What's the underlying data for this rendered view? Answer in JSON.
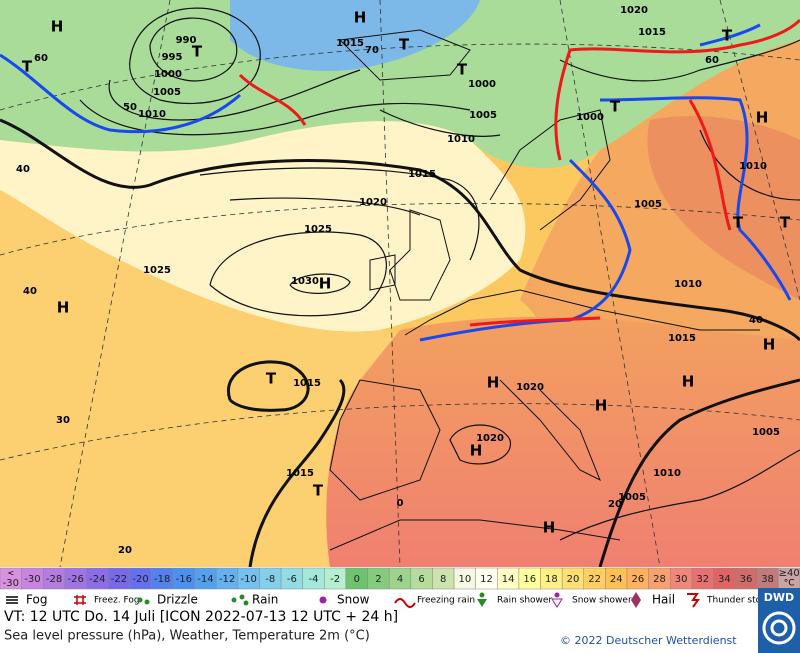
{
  "map": {
    "labels": [
      "H",
      "T",
      "990",
      "T",
      "995",
      "1000",
      "1005",
      "1010",
      "50",
      "H",
      "1015",
      "70",
      "T",
      "T",
      "1000",
      "1005",
      "1010",
      "1015",
      "1020",
      "1025",
      "1030",
      "H",
      "1025",
      "H",
      "40",
      "30",
      "T",
      "1015",
      "1015",
      "T",
      "20",
      "0",
      "H",
      "1020",
      "H",
      "H",
      "1020",
      "H",
      "1010",
      "1005",
      "H",
      "1015",
      "H",
      "1010",
      "1005",
      "1000",
      "T",
      "H",
      "1010",
      "T",
      "T",
      "1020",
      "1015",
      "60",
      "T",
      "20",
      "1005",
      "40",
      "60",
      "40"
    ]
  },
  "color_scale": [
    {
      "label": "-30",
      "prefix": "<",
      "color": "#d890e0"
    },
    {
      "label": "-30",
      "color": "#c884e0"
    },
    {
      "label": "-28",
      "color": "#b47ce0"
    },
    {
      "label": "-26",
      "color": "#a074e4"
    },
    {
      "label": "-24",
      "color": "#8c6ce8"
    },
    {
      "label": "-22",
      "color": "#7868ec"
    },
    {
      "label": "-20",
      "color": "#6470f0"
    },
    {
      "label": "-18",
      "color": "#5480f0"
    },
    {
      "label": "-16",
      "color": "#4c90f0"
    },
    {
      "label": "-14",
      "color": "#54a0f0"
    },
    {
      "label": "-12",
      "color": "#64b0f0"
    },
    {
      "label": "-10",
      "color": "#74c0f0"
    },
    {
      "label": "-8",
      "color": "#84d0ec"
    },
    {
      "label": "-6",
      "color": "#94dce4"
    },
    {
      "label": "-4",
      "color": "#a4e8dc"
    },
    {
      "label": "-2",
      "color": "#b4f0d0"
    },
    {
      "label": "0",
      "color": "#6cc46c"
    },
    {
      "label": "2",
      "color": "#84cc7c"
    },
    {
      "label": "4",
      "color": "#9cd48c"
    },
    {
      "label": "6",
      "color": "#b4dc9c"
    },
    {
      "label": "8",
      "color": "#cce4ac"
    },
    {
      "label": "10",
      "color": "#f4f8e4"
    },
    {
      "label": "12",
      "color": "#fffff0"
    },
    {
      "label": "14",
      "color": "#ffffc4"
    },
    {
      "label": "16",
      "color": "#ffff9c"
    },
    {
      "label": "18",
      "color": "#fff084"
    },
    {
      "label": "20",
      "color": "#ffe070"
    },
    {
      "label": "22",
      "color": "#ffd060"
    },
    {
      "label": "24",
      "color": "#ffc054"
    },
    {
      "label": "26",
      "color": "#ffb060"
    },
    {
      "label": "28",
      "color": "#f8a070"
    },
    {
      "label": "30",
      "color": "#f08878"
    },
    {
      "label": "32",
      "color": "#e87070"
    },
    {
      "label": "34",
      "color": "#e06464"
    },
    {
      "label": "36",
      "color": "#d06c6c"
    },
    {
      "label": "38",
      "color": "#c07c7c"
    },
    {
      "label": "≥40",
      "unit": "°C",
      "color": "#c8a4a4"
    }
  ],
  "legend": {
    "items": [
      "Fog",
      "Freez. Fog",
      "Drizzle",
      "Rain",
      "Snow",
      "Freezing rain",
      "Rain shower",
      "Snow shower",
      "Hail",
      "Thunder storm"
    ]
  },
  "footer": {
    "valid_time": "VT: 12 UTC Do.  14 Juli [ICON 2022-07-13  12 UTC + 24 h]",
    "description": "Sea level pressure (hPa), Weather, Temperature 2m (°C)",
    "copyright": "© 2022 Deutscher Wetterdienst",
    "logo": "DWD"
  }
}
